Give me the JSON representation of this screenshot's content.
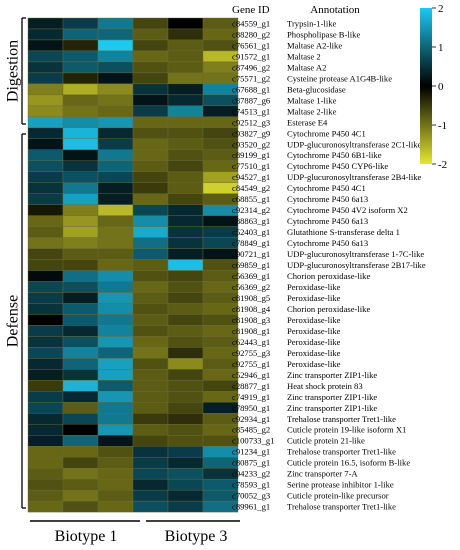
{
  "headers": {
    "gene_id": "Gene ID",
    "annotation": "Annotation"
  },
  "groups": [
    {
      "label": "Digestion"
    },
    {
      "label": "Defense"
    }
  ],
  "biotypes": [
    "Biotype 1",
    "Biotype 3"
  ],
  "colorbar": {
    "ticks": [
      "2",
      "1",
      "0",
      "-1",
      "-2"
    ]
  },
  "colors": {
    "high": "#1ec8f0",
    "mid": "#000000",
    "low": "#e6e632"
  },
  "chart_data": {
    "type": "heatmap",
    "columns": 6,
    "zlim": [
      -2,
      2
    ],
    "rows": [
      {
        "id": "c84559_g1",
        "annotation": "Trypsin-1-like",
        "values": [
          0.3,
          0.6,
          1.2,
          -0.6,
          0.0,
          -0.8
        ]
      },
      {
        "id": "c88280_g2",
        "annotation": "Phospholipase B-like",
        "values": [
          0.4,
          1.0,
          1.0,
          -0.8,
          -0.4,
          -0.9
        ]
      },
      {
        "id": "c76561_g1",
        "annotation": "Maltase A2-like",
        "values": [
          0.2,
          -0.3,
          2.0,
          -0.6,
          -0.8,
          -0.7
        ]
      },
      {
        "id": "c91572_g1",
        "annotation": "Maltase 2",
        "values": [
          0.7,
          0.9,
          1.3,
          -0.9,
          -0.8,
          -1.6
        ]
      },
      {
        "id": "c87496_g2",
        "annotation": "Maltase A2",
        "values": [
          0.5,
          0.9,
          0.8,
          -0.7,
          -0.8,
          -1.1
        ]
      },
      {
        "id": "c75571_g2",
        "annotation": "Cysteine protease A1G4B-like",
        "values": [
          0.6,
          -0.3,
          0.2,
          -0.6,
          -1.0,
          -1.0
        ]
      },
      {
        "id": "c67688_g1",
        "annotation": "Beta-glucosidase",
        "values": [
          -1.1,
          -1.5,
          -1.2,
          0.5,
          0.3,
          1.3
        ]
      },
      {
        "id": "c87887_g6",
        "annotation": "Maltase 1-like",
        "values": [
          -1.3,
          -0.9,
          -1.0,
          0.2,
          0.4,
          0.8
        ]
      },
      {
        "id": "c74513_g1",
        "annotation": "Maltase 2-like",
        "values": [
          -1.2,
          -1.0,
          -0.9,
          0.6,
          1.3,
          0.3
        ]
      },
      {
        "id": "c92512_g3",
        "annotation": "Esterase E4",
        "values": [
          1.6,
          1.4,
          1.5,
          -0.9,
          -0.9,
          -0.9
        ]
      },
      {
        "id": "c93827_g9",
        "annotation": "Cytochrome P450 4C1",
        "values": [
          0.4,
          1.8,
          0.4,
          -0.7,
          -0.7,
          -0.6
        ]
      },
      {
        "id": "c93520_g2",
        "annotation": "UDP-glucuronosyltransferase 2C1-like",
        "values": [
          0.2,
          1.9,
          0.6,
          -0.9,
          -0.8,
          -0.7
        ]
      },
      {
        "id": "c89199_g1",
        "annotation": "Cytochrome P450 6B1-like",
        "values": [
          0.9,
          0.2,
          1.2,
          -0.9,
          -0.7,
          -0.8
        ]
      },
      {
        "id": "c77510_g1",
        "annotation": "Cytochrome P450 CYP6-like",
        "values": [
          0.8,
          0.5,
          1.0,
          -0.8,
          -0.6,
          -0.9
        ]
      },
      {
        "id": "c94527_g1",
        "annotation": "UDP-glucuronosyltransferase 2B4-like",
        "values": [
          0.6,
          0.8,
          0.7,
          -0.6,
          -0.8,
          -1.4
        ]
      },
      {
        "id": "c84549_g2",
        "annotation": "Cytochrome P450 4C1",
        "values": [
          0.5,
          1.2,
          0.3,
          -0.5,
          -0.8,
          -1.8
        ]
      },
      {
        "id": "c68855_g1",
        "annotation": "Cytochrome P450 6a13",
        "values": [
          0.6,
          1.6,
          0.3,
          -0.9,
          -0.6,
          -0.8
        ]
      },
      {
        "id": "c92314_g2",
        "annotation": "Cytochrome P450 4V2 isoform X2",
        "values": [
          -0.2,
          -1.1,
          -1.6,
          0.7,
          0.4,
          1.4
        ]
      },
      {
        "id": "c88863_g1",
        "annotation": "Cytochrome P450 6a13",
        "values": [
          -0.9,
          -1.3,
          -0.9,
          1.4,
          0.4,
          0.2
        ]
      },
      {
        "id": "c52403_g1",
        "annotation": "Glutathione S-transferase delta 1",
        "values": [
          -0.8,
          -1.4,
          -1.0,
          1.7,
          0.5,
          0.6
        ]
      },
      {
        "id": "c78849_g1",
        "annotation": "Cytochrome P450 6a13",
        "values": [
          -1.0,
          -1.1,
          -1.0,
          1.1,
          0.5,
          0.7
        ]
      },
      {
        "id": "c90721_g1",
        "annotation": "UDP-glucuronosyltransferase 1-7C-like",
        "values": [
          -0.6,
          -0.8,
          -0.8,
          0.9,
          0.3,
          0.2
        ]
      },
      {
        "id": "c69859_g1",
        "annotation": "UDP-glucuronosyltransferase 2B17-like",
        "values": [
          -0.6,
          -0.6,
          -0.9,
          -0.8,
          1.9,
          -0.7
        ]
      },
      {
        "id": "c56369_g1",
        "annotation": "Chorion peroxidase-like",
        "values": [
          0.1,
          1.1,
          1.4,
          -0.7,
          -0.6,
          -0.8
        ]
      },
      {
        "id": "c56369_g2",
        "annotation": "Peroxidase-like",
        "values": [
          0.7,
          0.8,
          1.2,
          -0.9,
          -0.7,
          -0.9
        ]
      },
      {
        "id": "c81908_g5",
        "annotation": "Peroxidase-like",
        "values": [
          0.6,
          0.3,
          1.5,
          -0.8,
          -0.6,
          -0.8
        ]
      },
      {
        "id": "c81908_g4",
        "annotation": "Chorion peroxidase-like",
        "values": [
          0.5,
          0.9,
          1.4,
          -0.7,
          -0.8,
          -0.9
        ]
      },
      {
        "id": "c81908_g3",
        "annotation": "Peroxidase-like",
        "values": [
          0.0,
          0.9,
          1.2,
          -0.8,
          -0.6,
          -0.7
        ]
      },
      {
        "id": "c81908_g1",
        "annotation": "Peroxidase-like",
        "values": [
          0.6,
          0.4,
          1.3,
          -0.7,
          -0.8,
          -0.9
        ]
      },
      {
        "id": "c62443_g1",
        "annotation": "Peroxidase-like",
        "values": [
          0.5,
          0.8,
          1.5,
          -0.9,
          -0.7,
          -0.8
        ]
      },
      {
        "id": "c92755_g3",
        "annotation": "Peroxidase-like",
        "values": [
          0.7,
          1.3,
          1.0,
          -1.0,
          -0.4,
          -0.9
        ]
      },
      {
        "id": "c92755_g1",
        "annotation": "Peroxidase-like",
        "values": [
          0.4,
          1.0,
          1.6,
          -0.7,
          -1.2,
          -0.8
        ]
      },
      {
        "id": "c52946_g1",
        "annotation": "Zinc transporter ZIP1-like",
        "values": [
          0.3,
          0.5,
          1.6,
          -0.8,
          -0.6,
          -0.9
        ]
      },
      {
        "id": "c28877_g1",
        "annotation": "Heat shock protein 83",
        "values": [
          -0.5,
          1.8,
          0.9,
          -0.8,
          -0.7,
          -0.6
        ]
      },
      {
        "id": "c74919_g1",
        "annotation": "Zinc transporter ZIP1-like",
        "values": [
          0.6,
          0.4,
          1.5,
          -0.8,
          -0.7,
          -0.9
        ]
      },
      {
        "id": "c78950_g1",
        "annotation": "Zinc transporter ZIP1-like",
        "values": [
          0.7,
          -0.8,
          1.2,
          -0.8,
          -0.6,
          0.3
        ]
      },
      {
        "id": "c92934_g1",
        "annotation": "Trehalose transporter Tret1-like",
        "values": [
          0.4,
          0.7,
          1.2,
          -0.5,
          -0.4,
          -0.8
        ]
      },
      {
        "id": "c85485_g2",
        "annotation": "Cuticle protein 19-like isoform X1",
        "values": [
          0.4,
          0.0,
          1.5,
          -0.8,
          -0.7,
          -0.9
        ]
      },
      {
        "id": "c100733_g1",
        "annotation": "Cuticle protein 21-like",
        "values": [
          0.3,
          1.0,
          0.2,
          -0.6,
          -0.7,
          -0.7
        ]
      },
      {
        "id": "c91234_g1",
        "annotation": "Trehalose transporter Tret1-like",
        "values": [
          -0.9,
          -0.9,
          -0.7,
          0.5,
          0.6,
          1.4
        ]
      },
      {
        "id": "c80875_g1",
        "annotation": "Cuticle protein 16.5, isoform B-like",
        "values": [
          -0.9,
          -0.6,
          -0.8,
          0.6,
          0.4,
          1.0
        ]
      },
      {
        "id": "c94233_g2",
        "annotation": "Zinc transporter 7-A",
        "values": [
          -0.8,
          -1.0,
          -0.9,
          0.7,
          0.8,
          0.5
        ]
      },
      {
        "id": "c78593_g1",
        "annotation": "Serine protease inhibitor 1-like",
        "values": [
          -0.7,
          -0.8,
          -0.9,
          0.4,
          0.7,
          0.9
        ]
      },
      {
        "id": "c70052_g3",
        "annotation": "Cuticle protein-like precursor",
        "values": [
          -0.8,
          -1.0,
          -0.8,
          0.6,
          0.4,
          0.9
        ]
      },
      {
        "id": "c89961_g1",
        "annotation": "Trehalose transporter Tret1-like",
        "values": [
          -0.9,
          -0.7,
          -0.9,
          0.8,
          0.6,
          1.1
        ]
      }
    ]
  }
}
